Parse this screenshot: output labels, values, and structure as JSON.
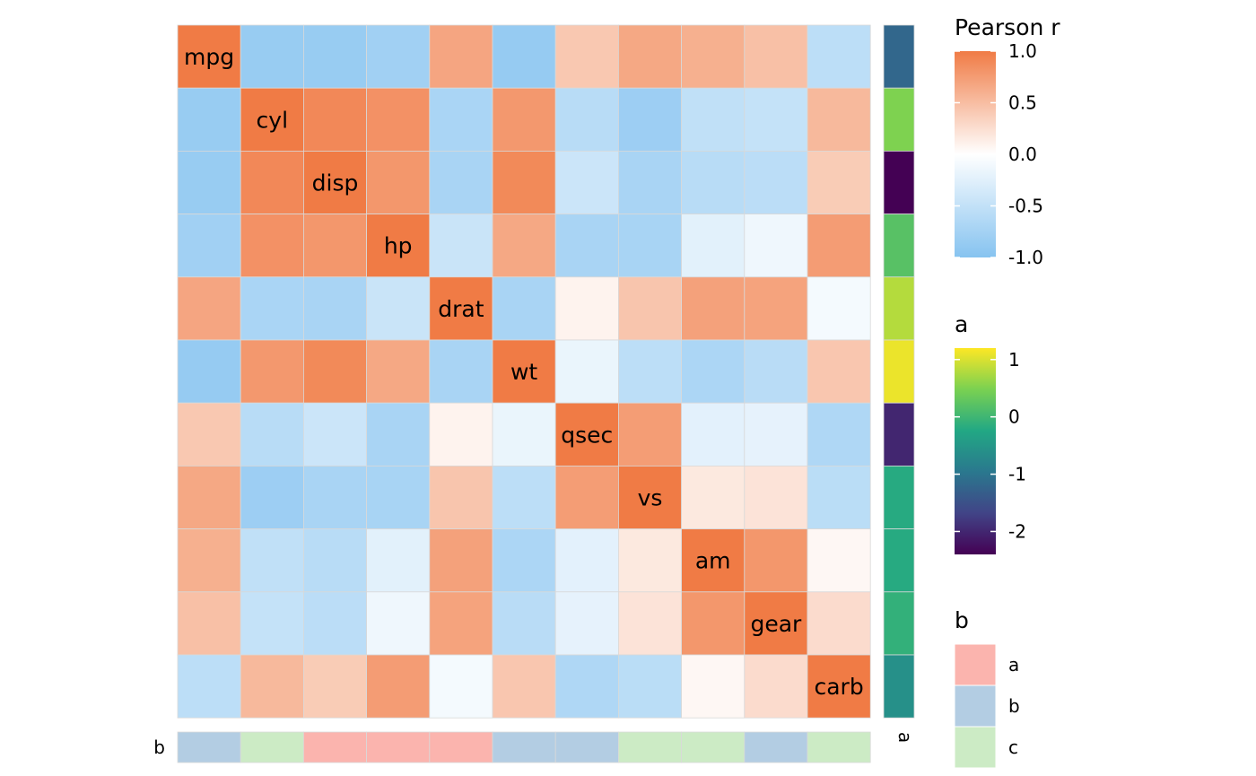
{
  "chart_data": {
    "type": "heatmap",
    "variables": [
      "mpg",
      "cyl",
      "disp",
      "hp",
      "drat",
      "wt",
      "qsec",
      "vs",
      "am",
      "gear",
      "carb"
    ],
    "matrix": [
      [
        1.0,
        -0.85,
        -0.85,
        -0.78,
        0.68,
        -0.87,
        0.42,
        0.66,
        0.6,
        0.48,
        -0.55
      ],
      [
        -0.85,
        1.0,
        0.9,
        0.83,
        -0.7,
        0.78,
        -0.59,
        -0.81,
        -0.52,
        -0.49,
        0.53
      ],
      [
        -0.85,
        0.9,
        1.0,
        0.79,
        -0.71,
        0.89,
        -0.43,
        -0.71,
        -0.59,
        -0.56,
        0.39
      ],
      [
        -0.78,
        0.83,
        0.79,
        1.0,
        -0.45,
        0.66,
        -0.71,
        -0.72,
        -0.24,
        -0.13,
        0.75
      ],
      [
        0.68,
        -0.7,
        -0.71,
        -0.45,
        1.0,
        -0.71,
        0.09,
        0.44,
        0.71,
        0.7,
        -0.09
      ],
      [
        -0.87,
        0.78,
        0.89,
        0.66,
        -0.71,
        1.0,
        -0.17,
        -0.55,
        -0.69,
        -0.58,
        0.43
      ],
      [
        0.42,
        -0.59,
        -0.43,
        -0.71,
        0.09,
        -0.17,
        1.0,
        0.74,
        -0.23,
        -0.21,
        -0.66
      ],
      [
        0.66,
        -0.81,
        -0.71,
        -0.72,
        0.44,
        -0.55,
        0.74,
        1.0,
        0.17,
        0.21,
        -0.57
      ],
      [
        0.6,
        -0.52,
        -0.59,
        -0.24,
        0.71,
        -0.69,
        -0.23,
        0.17,
        1.0,
        0.79,
        0.06
      ],
      [
        0.48,
        -0.49,
        -0.56,
        -0.13,
        0.7,
        -0.58,
        -0.21,
        0.21,
        0.79,
        1.0,
        0.27
      ],
      [
        -0.55,
        0.53,
        0.39,
        0.75,
        -0.09,
        0.43,
        -0.66,
        -0.57,
        0.06,
        0.27,
        1.0
      ]
    ],
    "row_annotation": {
      "name": "a",
      "values": [
        -1.2,
        0.5,
        -2.4,
        0.2,
        0.8,
        1.1,
        -2.0,
        -0.2,
        -0.2,
        -0.1,
        -0.6
      ]
    },
    "col_annotation": {
      "name": "b",
      "values": [
        "b",
        "c",
        "a",
        "a",
        "a",
        "b",
        "b",
        "c",
        "c",
        "b",
        "c"
      ]
    },
    "legends": {
      "pearson": {
        "title": "Pearson r",
        "ticks": [
          "1.0",
          "0.5",
          "0.0",
          "-0.5",
          "-1.0"
        ],
        "tick_values": [
          1.0,
          0.5,
          0.0,
          -0.5,
          -1.0
        ],
        "colors": [
          "#f07b45",
          "#ffffff",
          "#86c3f0"
        ]
      },
      "a": {
        "title": "a",
        "ticks": [
          "1",
          "0",
          "-1",
          "-2"
        ],
        "tick_values": [
          1,
          0,
          -1,
          -2
        ],
        "range": [
          -2.4,
          1.2
        ]
      },
      "b": {
        "title": "b",
        "levels": [
          "a",
          "b",
          "c"
        ],
        "colors": [
          "#fbb4ae",
          "#b3cde3",
          "#ccebc5"
        ]
      }
    }
  }
}
